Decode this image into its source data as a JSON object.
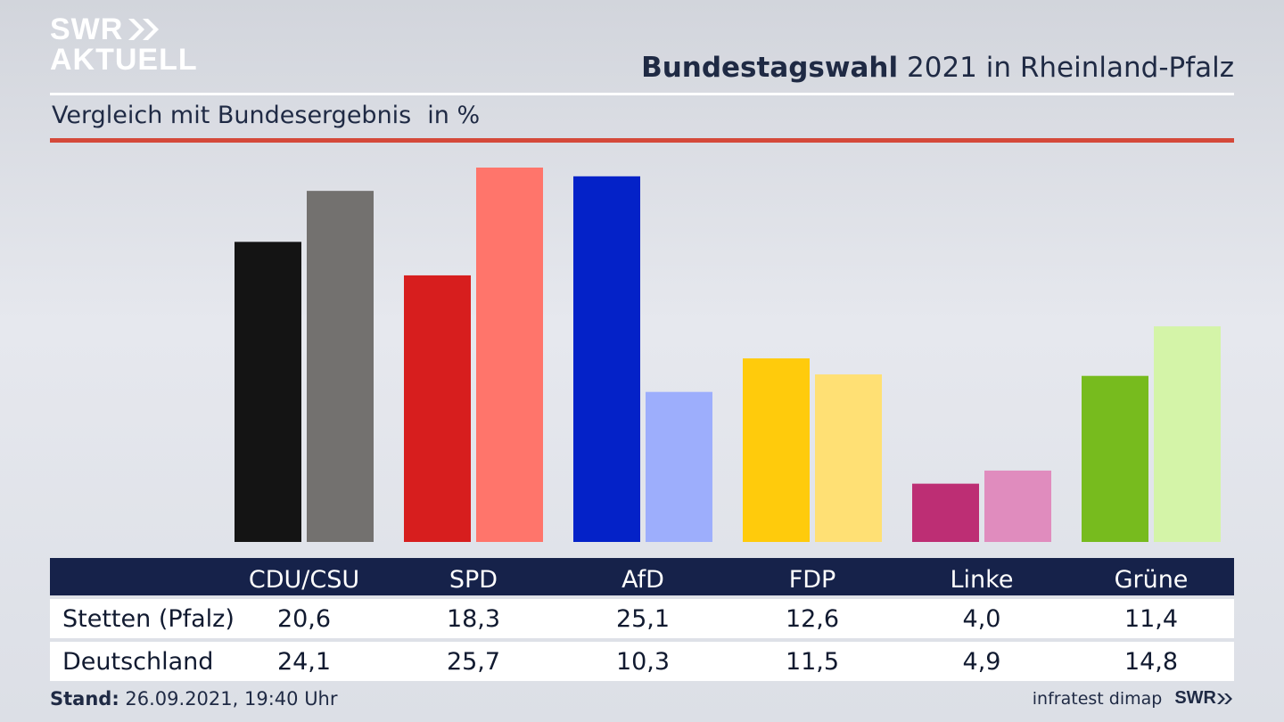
{
  "brand": {
    "line1": "SWR",
    "line2": "AKTUELL",
    "footer_logo": "SWR"
  },
  "header": {
    "title_bold": "Bundestagswahl",
    "title_rest": "2021 in Rheinland-Pfalz"
  },
  "subheader": {
    "text": "Vergleich mit Bundesergebnis",
    "unit": "in %"
  },
  "footer": {
    "stand_label": "Stand:",
    "stand_value": "26.09.2021, 19:40 Uhr",
    "source": "infratest dimap"
  },
  "chart_data": {
    "type": "bar",
    "categories": [
      "CDU/CSU",
      "SPD",
      "AfD",
      "FDP",
      "Linke",
      "Grüne"
    ],
    "series": [
      {
        "name": "Stetten (Pfalz)",
        "values": [
          20.6,
          18.3,
          25.1,
          12.6,
          4.0,
          11.4
        ],
        "labels": [
          "20,6",
          "18,3",
          "25,1",
          "12,6",
          "4,0",
          "11,4"
        ]
      },
      {
        "name": "Deutschland",
        "values": [
          24.1,
          25.7,
          10.3,
          11.5,
          4.9,
          14.8
        ],
        "labels": [
          "24,1",
          "25,7",
          "10,3",
          "11,5",
          "4,9",
          "14,8"
        ]
      }
    ],
    "colors": [
      [
        "#141414",
        "#73716f"
      ],
      [
        "#d71e1e",
        "#ff756b"
      ],
      [
        "#0422c8",
        "#9daefc"
      ],
      [
        "#ffcb0c",
        "#ffe074"
      ],
      [
        "#bd2e74",
        "#e08cbe"
      ],
      [
        "#77bb1e",
        "#d4f4a8"
      ]
    ],
    "ylim": [
      0,
      25.7
    ],
    "grid": false,
    "legend": "table-below"
  }
}
